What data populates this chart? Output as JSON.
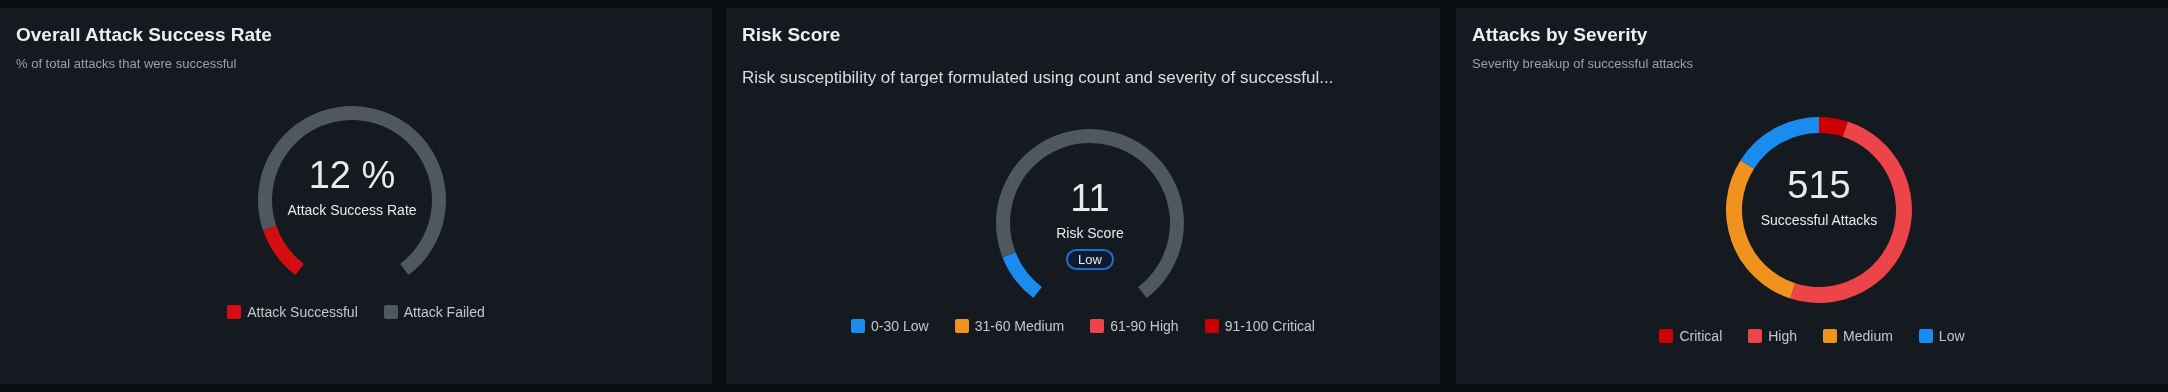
{
  "chart_data": [
    {
      "type": "donut",
      "title": "Overall Attack Success Rate",
      "subtitle": "% of total attacks that were successful",
      "categories": [
        "Attack Successful",
        "Attack Failed"
      ],
      "values": [
        12,
        88
      ],
      "colors": [
        "#d40d12",
        "#4f5860"
      ],
      "annotations": [
        "12 %",
        "Attack Success Rate"
      ],
      "legend": "bottom"
    },
    {
      "type": "donut",
      "title": "Risk Score",
      "subtitle": "Risk susceptibility of target formulated using count and severity of successful...",
      "categories": [
        "0-30 Low",
        "31-60 Medium",
        "61-90 High",
        "91-100 Critical",
        null
      ],
      "values": [
        11,
        0,
        0,
        0,
        89
      ],
      "colors": [
        "#1a8cf0",
        "#f0921e",
        "#ec4449",
        "#cc0000",
        "#4f5860"
      ],
      "annotations": [
        "11",
        "Risk Score",
        "Low"
      ],
      "legend": "bottom"
    },
    {
      "type": "donut",
      "title": "Attacks by Severity",
      "subtitle": "Severity breakup of successful attacks",
      "categories": [
        "Critical",
        "High",
        "Medium",
        "Low"
      ],
      "values": [
        5,
        50,
        29,
        16
      ],
      "colors": [
        "#cc0000",
        "#ec4449",
        "#f0921e",
        "#1a8cf0"
      ],
      "annotations": [
        "515",
        "Successful Attacks"
      ],
      "legend": "bottom"
    }
  ]
}
